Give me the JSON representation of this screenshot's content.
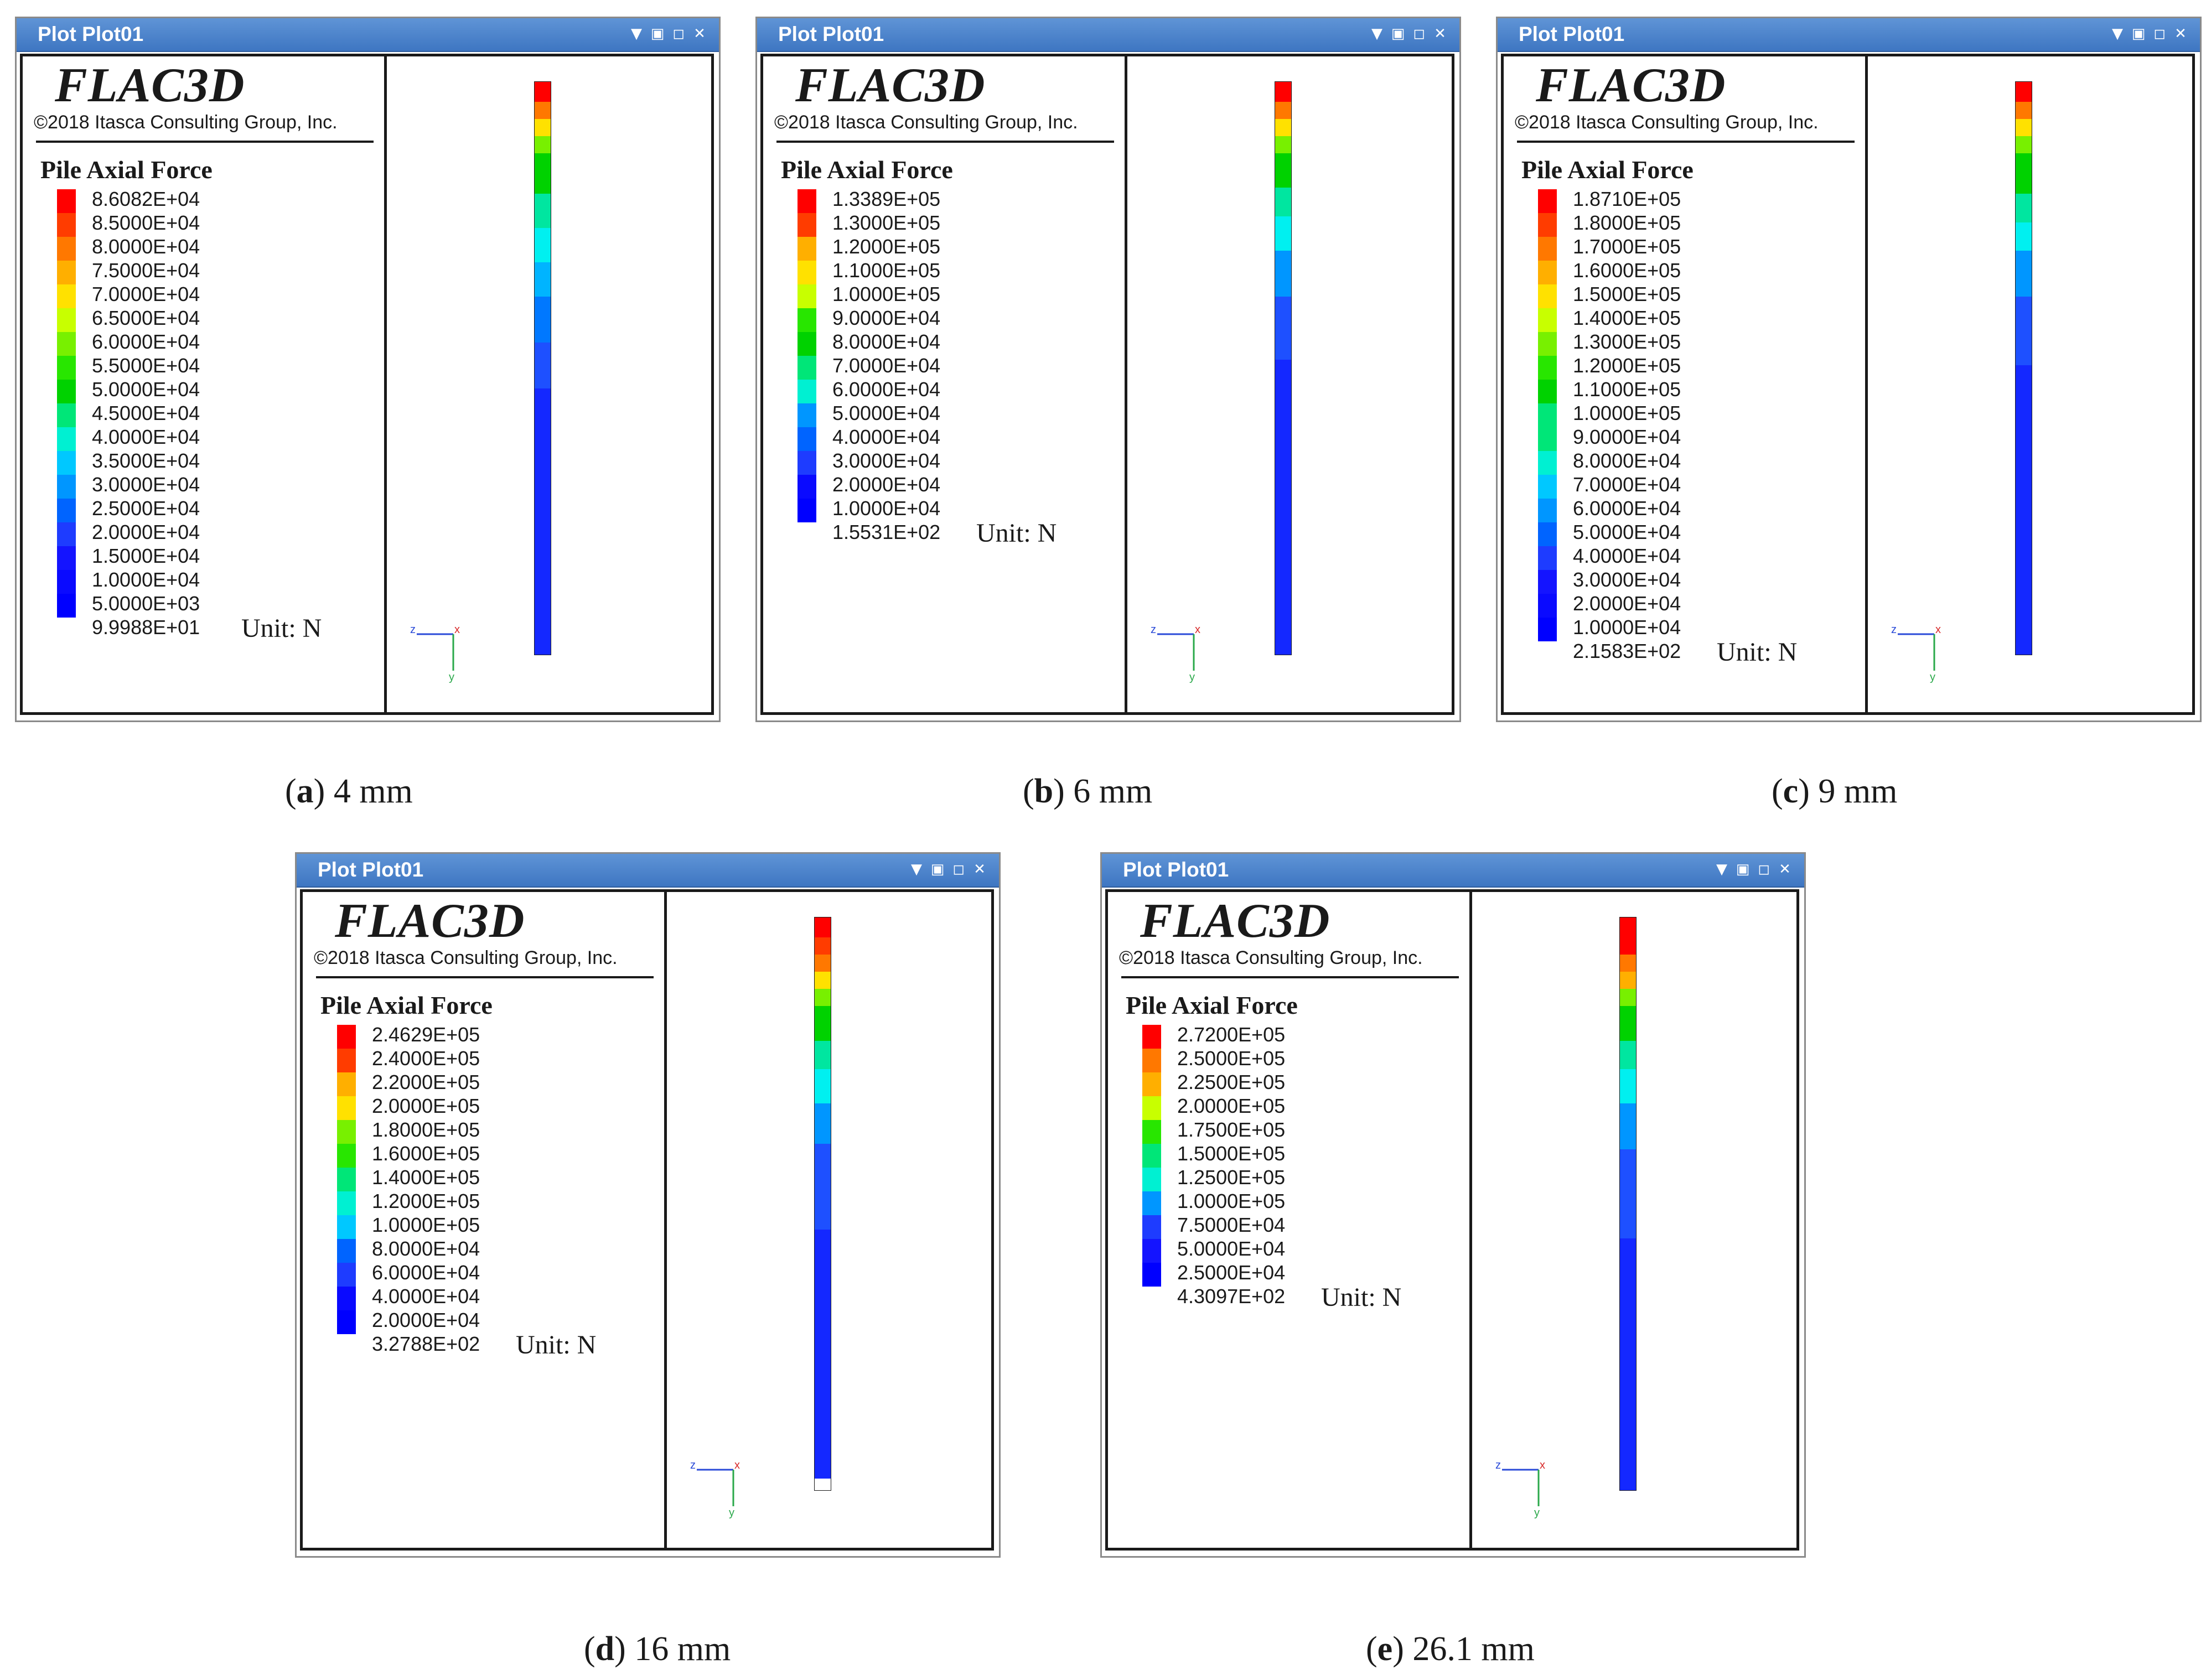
{
  "window_title": "Plot Plot01",
  "window_buttons": [
    "▼",
    "▣",
    "◻",
    "✕"
  ],
  "logo": "FLAC3D",
  "copyright": "©2018 Itasca Consulting Group, Inc.",
  "legend_title": "Pile Axial Force",
  "unit_label": "Unit: N",
  "axis_labels": {
    "z": "z",
    "x": "x",
    "y": "y"
  },
  "colors": {
    "titlebar": "#4a82cc",
    "contour_scale": [
      "#ff0000",
      "#ff3c00",
      "#ff7800",
      "#ffaf00",
      "#ffe100",
      "#c8ff00",
      "#78f000",
      "#28e600",
      "#00d200",
      "#00e678",
      "#00f0d2",
      "#00c8ff",
      "#0096ff",
      "#0064ff",
      "#1e3cff",
      "#1414ff",
      "#0a0aff",
      "#0000ff"
    ]
  },
  "panels": [
    {
      "id": "a",
      "caption_letter": "a",
      "caption_text": "4 mm",
      "legend": [
        "8.6082E+04",
        "8.5000E+04",
        "8.0000E+04",
        "7.5000E+04",
        "7.0000E+04",
        "6.5000E+04",
        "6.0000E+04",
        "5.5000E+04",
        "5.0000E+04",
        "4.5000E+04",
        "4.0000E+04",
        "3.5000E+04",
        "3.0000E+04",
        "2.5000E+04",
        "2.0000E+04",
        "1.5000E+04",
        "1.0000E+04",
        "5.0000E+03",
        "9.9988E+01"
      ],
      "pile_bands": [
        {
          "color": "#ff0000",
          "fraction": 0.035
        },
        {
          "color": "#ff7800",
          "fraction": 0.03
        },
        {
          "color": "#ffe100",
          "fraction": 0.03
        },
        {
          "color": "#78f000",
          "fraction": 0.03
        },
        {
          "color": "#00d200",
          "fraction": 0.07
        },
        {
          "color": "#00e6a0",
          "fraction": 0.06
        },
        {
          "color": "#00f0f0",
          "fraction": 0.06
        },
        {
          "color": "#00b4ff",
          "fraction": 0.06
        },
        {
          "color": "#0078ff",
          "fraction": 0.08
        },
        {
          "color": "#1e50ff",
          "fraction": 0.08
        },
        {
          "color": "#1428ff",
          "fraction": 0.465
        }
      ]
    },
    {
      "id": "b",
      "caption_letter": "b",
      "caption_text": "6 mm",
      "legend": [
        "1.3389E+05",
        "1.3000E+05",
        "1.2000E+05",
        "1.1000E+05",
        "1.0000E+05",
        "9.0000E+04",
        "8.0000E+04",
        "7.0000E+04",
        "6.0000E+04",
        "5.0000E+04",
        "4.0000E+04",
        "3.0000E+04",
        "2.0000E+04",
        "1.0000E+04",
        "1.5531E+02"
      ],
      "pile_bands": [
        {
          "color": "#ff0000",
          "fraction": 0.035
        },
        {
          "color": "#ff7800",
          "fraction": 0.03
        },
        {
          "color": "#ffe100",
          "fraction": 0.03
        },
        {
          "color": "#78f000",
          "fraction": 0.03
        },
        {
          "color": "#00d200",
          "fraction": 0.06
        },
        {
          "color": "#00e6a0",
          "fraction": 0.05
        },
        {
          "color": "#00f0f0",
          "fraction": 0.06
        },
        {
          "color": "#0096ff",
          "fraction": 0.08
        },
        {
          "color": "#1e50ff",
          "fraction": 0.11
        },
        {
          "color": "#1428ff",
          "fraction": 0.515
        }
      ]
    },
    {
      "id": "c",
      "caption_letter": "c",
      "caption_text": "9 mm",
      "legend": [
        "1.8710E+05",
        "1.8000E+05",
        "1.7000E+05",
        "1.6000E+05",
        "1.5000E+05",
        "1.4000E+05",
        "1.3000E+05",
        "1.2000E+05",
        "1.1000E+05",
        "1.0000E+05",
        "9.0000E+04",
        "8.0000E+04",
        "7.0000E+04",
        "6.0000E+04",
        "5.0000E+04",
        "4.0000E+04",
        "3.0000E+04",
        "2.0000E+04",
        "1.0000E+04",
        "2.1583E+02"
      ],
      "pile_bands": [
        {
          "color": "#ff0000",
          "fraction": 0.035
        },
        {
          "color": "#ff7800",
          "fraction": 0.03
        },
        {
          "color": "#ffe100",
          "fraction": 0.03
        },
        {
          "color": "#78f000",
          "fraction": 0.03
        },
        {
          "color": "#00d200",
          "fraction": 0.07
        },
        {
          "color": "#00e6a0",
          "fraction": 0.05
        },
        {
          "color": "#00f0f0",
          "fraction": 0.05
        },
        {
          "color": "#0096ff",
          "fraction": 0.08
        },
        {
          "color": "#1e50ff",
          "fraction": 0.12
        },
        {
          "color": "#1428ff",
          "fraction": 0.505
        }
      ]
    },
    {
      "id": "d",
      "caption_letter": "d",
      "caption_text": "16 mm",
      "legend": [
        "2.4629E+05",
        "2.4000E+05",
        "2.2000E+05",
        "2.0000E+05",
        "1.8000E+05",
        "1.6000E+05",
        "1.4000E+05",
        "1.2000E+05",
        "1.0000E+05",
        "8.0000E+04",
        "6.0000E+04",
        "4.0000E+04",
        "2.0000E+04",
        "3.2788E+02"
      ],
      "pile_bands": [
        {
          "color": "#ff0000",
          "fraction": 0.035
        },
        {
          "color": "#ff3c00",
          "fraction": 0.03
        },
        {
          "color": "#ff7800",
          "fraction": 0.03
        },
        {
          "color": "#ffe100",
          "fraction": 0.03
        },
        {
          "color": "#78f000",
          "fraction": 0.03
        },
        {
          "color": "#00d200",
          "fraction": 0.06
        },
        {
          "color": "#00e6a0",
          "fraction": 0.05
        },
        {
          "color": "#00f0f0",
          "fraction": 0.06
        },
        {
          "color": "#0096ff",
          "fraction": 0.07
        },
        {
          "color": "#1e50ff",
          "fraction": 0.15
        },
        {
          "color": "#1428ff",
          "fraction": 0.435
        }
      ]
    },
    {
      "id": "e",
      "caption_letter": "e",
      "caption_text": "26.1 mm",
      "legend": [
        "2.7200E+05",
        "2.5000E+05",
        "2.2500E+05",
        "2.0000E+05",
        "1.7500E+05",
        "1.5000E+05",
        "1.2500E+05",
        "1.0000E+05",
        "7.5000E+04",
        "5.0000E+04",
        "2.5000E+04",
        "4.3097E+02"
      ],
      "pile_bands": [
        {
          "color": "#ff0000",
          "fraction": 0.065
        },
        {
          "color": "#ff7800",
          "fraction": 0.03
        },
        {
          "color": "#ffaf00",
          "fraction": 0.03
        },
        {
          "color": "#78f000",
          "fraction": 0.03
        },
        {
          "color": "#00d200",
          "fraction": 0.06
        },
        {
          "color": "#00e6a0",
          "fraction": 0.05
        },
        {
          "color": "#00f0f0",
          "fraction": 0.06
        },
        {
          "color": "#0096ff",
          "fraction": 0.08
        },
        {
          "color": "#1e50ff",
          "fraction": 0.155
        },
        {
          "color": "#1428ff",
          "fraction": 0.44
        }
      ]
    }
  ]
}
